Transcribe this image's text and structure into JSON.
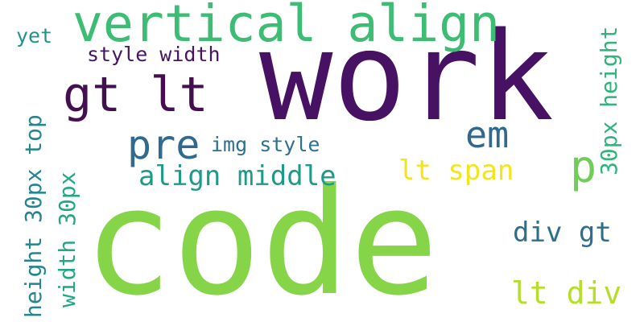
{
  "words": {
    "code": {
      "text": "code",
      "color": "#86d549"
    },
    "work": {
      "text": "work",
      "color": "#471164"
    },
    "vertical": {
      "text": "vertical align",
      "color": "#3dbc74"
    },
    "gtlt": {
      "text": "gt lt",
      "color": "#440f50"
    },
    "pre": {
      "text": "pre",
      "color": "#306a8e"
    },
    "em": {
      "text": "em",
      "color": "#31688e"
    },
    "p": {
      "text": "p",
      "color": "#6ece58"
    },
    "lt_span": {
      "text": "lt span",
      "color": "#f2e51d"
    },
    "align_middle": {
      "text": "align middle",
      "color": "#1f9a8a"
    },
    "img_style": {
      "text": "img style",
      "color": "#2c728e"
    },
    "style_width": {
      "text": "style width",
      "color": "#471466"
    },
    "yet": {
      "text": "yet",
      "color": "#21918c"
    },
    "div_gt": {
      "text": "div gt",
      "color": "#2d6e8e"
    },
    "lt_div": {
      "text": "lt div",
      "color": "#b5de2b"
    },
    "height_30_top": {
      "text": "height 30px top",
      "color": "#25858e"
    },
    "width_30": {
      "text": "width 30px",
      "color": "#22a785"
    },
    "px30_height": {
      "text": "30px height",
      "color": "#2fb47c"
    }
  }
}
